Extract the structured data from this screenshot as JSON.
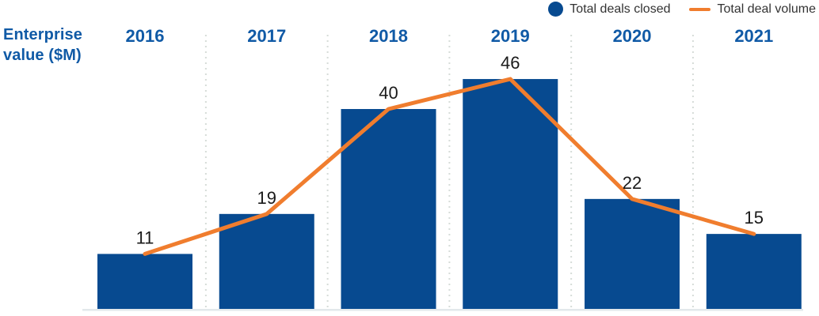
{
  "header": {
    "y_axis_title_line1": "Enterprise",
    "y_axis_title_line2": "value ($M)"
  },
  "legend": [
    {
      "label": "Total deals closed",
      "marker": "circle-icon",
      "color": "#074a90"
    },
    {
      "label": "Total deal volume",
      "marker": "line-icon",
      "color": "#f07d2e"
    }
  ],
  "chart_data": {
    "type": "bar",
    "subtype": "bar-with-line-overlay",
    "title": "",
    "xlabel": "",
    "ylabel": "Enterprise value ($M)",
    "categories": [
      "2016",
      "2017",
      "2018",
      "2019",
      "2020",
      "2021"
    ],
    "series": [
      {
        "name": "Total deals closed",
        "type": "bar",
        "values": [
          11,
          19,
          40,
          46,
          22,
          15
        ],
        "color": "#074a90"
      },
      {
        "name": "Total deal volume",
        "type": "line",
        "values": [
          11,
          19,
          40,
          46,
          22,
          15
        ],
        "color": "#f07d2e"
      }
    ],
    "value_labels": [
      "11",
      "19",
      "40",
      "46",
      "22",
      "15"
    ],
    "ylim": [
      0,
      46
    ],
    "grid": "dotted-vertical-separators-between-columns",
    "legend_position": "top-right",
    "axes_visible": "baseline-only"
  },
  "colors": {
    "bar": "#074a90",
    "line": "#f07d2e",
    "axis_text": "#105aa6",
    "value_text": "#1a1a1a",
    "legend_text": "#333333",
    "separator": "#d6dcd8",
    "baseline": "#e2e8eb",
    "background": "#ffffff"
  }
}
